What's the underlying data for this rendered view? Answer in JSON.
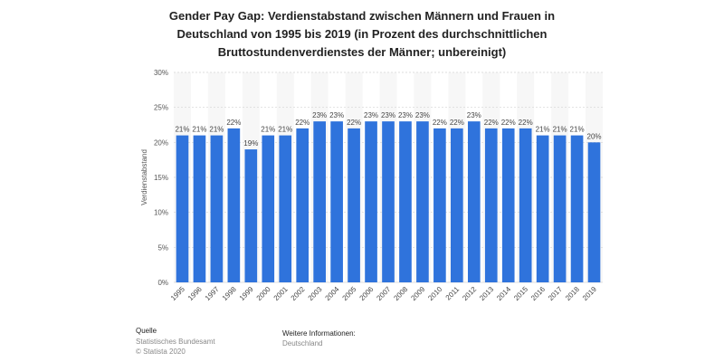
{
  "title": "Gender Pay Gap: Verdienstabstand zwischen Männern und Frauen in Deutschland von 1995 bis 2019 (in Prozent des durchschnittlichen Bruttostundenverdienstes der Männer; unbereinigt)",
  "chart_data": {
    "type": "bar",
    "categories": [
      "1995",
      "1996",
      "1997",
      "1998",
      "1999",
      "2000",
      "2001",
      "2002",
      "2003",
      "2004",
      "2005",
      "2006",
      "2007",
      "2008",
      "2009",
      "2010",
      "2011",
      "2012",
      "2013",
      "2014",
      "2015",
      "2016",
      "2017",
      "2018",
      "2019"
    ],
    "values": [
      21,
      21,
      21,
      22,
      19,
      21,
      21,
      22,
      23,
      23,
      22,
      23,
      23,
      23,
      23,
      22,
      22,
      23,
      22,
      22,
      22,
      21,
      21,
      21,
      20
    ],
    "value_labels": [
      "21%",
      "21%",
      "21%",
      "22%",
      "19%",
      "21%",
      "21%",
      "22%",
      "23%",
      "23%",
      "22%",
      "23%",
      "23%",
      "23%",
      "23%",
      "22%",
      "22%",
      "23%",
      "22%",
      "22%",
      "22%",
      "21%",
      "21%",
      "21%",
      "20%"
    ],
    "ylabel": "Verdienstabstand",
    "xlabel": "",
    "ylim": [
      0,
      30
    ],
    "yticks": [
      0,
      5,
      10,
      15,
      20,
      25,
      30
    ],
    "ytick_labels": [
      "0%",
      "5%",
      "10%",
      "15%",
      "20%",
      "25%",
      "30%"
    ],
    "grid": true,
    "bar_color": "#2f73dc"
  },
  "footer": {
    "source_label": "Quelle",
    "source_lines": [
      "Statistisches Bundesamt",
      "© Statista 2020"
    ],
    "info_label": "Weitere Informationen:",
    "info_value": "Deutschland"
  }
}
